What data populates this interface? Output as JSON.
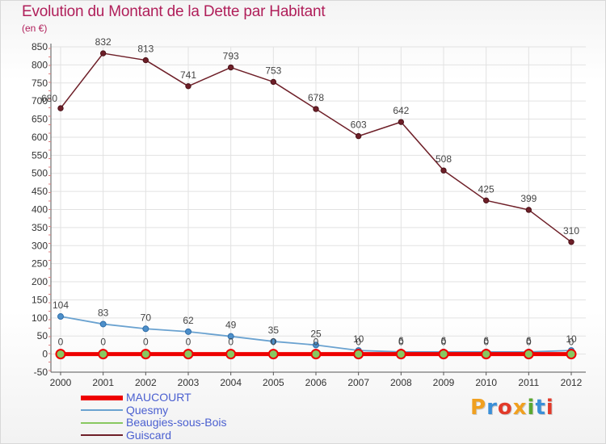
{
  "title": "Evolution du Montant de la Dette par Habitant",
  "unit": "(en €)",
  "logo": {
    "text": "Proxiti",
    "colors": [
      "#f0a020",
      "#3a8fd8",
      "#e23a2a",
      "#f0a020",
      "#5aa832",
      "#3a8fd8",
      "#e23a2a"
    ]
  },
  "chart_data": {
    "type": "line",
    "x": [
      "2000",
      "2001",
      "2002",
      "2003",
      "2004",
      "2005",
      "2006",
      "2007",
      "2008",
      "2009",
      "2010",
      "2011",
      "2012"
    ],
    "ylim": [
      -50,
      850
    ],
    "yticks": [
      "-50",
      "0",
      "50",
      "100",
      "150",
      "200",
      "250",
      "300",
      "350",
      "400",
      "450",
      "500",
      "550",
      "600",
      "650",
      "700",
      "750",
      "800",
      "850"
    ],
    "grid": true,
    "legend_position": "bottom-left",
    "series": [
      {
        "name": "MAUCOURT",
        "color": "#ee0000",
        "values": [
          0,
          0,
          0,
          0,
          0,
          0,
          0,
          0,
          0,
          0,
          0,
          0,
          0
        ],
        "labels": [
          "0",
          "0",
          "0",
          "0",
          "0",
          "0",
          "0",
          "0",
          "0",
          "0",
          "0",
          "0",
          "0"
        ]
      },
      {
        "name": "Quesmy",
        "color": "#6aa2d0",
        "values": [
          104,
          83,
          70,
          62,
          49,
          35,
          25,
          10,
          6,
          6,
          6,
          6,
          10
        ],
        "labels": [
          "104",
          "83",
          "70",
          "62",
          "49",
          "35",
          "25",
          "10",
          "6",
          "6",
          "6",
          "6",
          "10"
        ]
      },
      {
        "name": "Beaugies-sous-Bois",
        "color": "#88c860",
        "values": [
          0,
          0,
          0,
          0,
          0,
          0,
          0,
          0,
          0,
          0,
          0,
          0,
          0
        ],
        "labels": [
          "0",
          "0",
          "0",
          "0",
          "0",
          "0",
          "0",
          "0",
          "0",
          "0",
          "0",
          "0",
          "0"
        ]
      },
      {
        "name": "Guiscard",
        "color": "#6e1f28",
        "values": [
          680,
          832,
          813,
          741,
          793,
          753,
          678,
          603,
          642,
          508,
          425,
          399,
          310
        ],
        "labels": [
          "680",
          "832",
          "813",
          "741",
          "793",
          "753",
          "678",
          "603",
          "642",
          "508",
          "425",
          "399",
          "310"
        ]
      }
    ]
  }
}
